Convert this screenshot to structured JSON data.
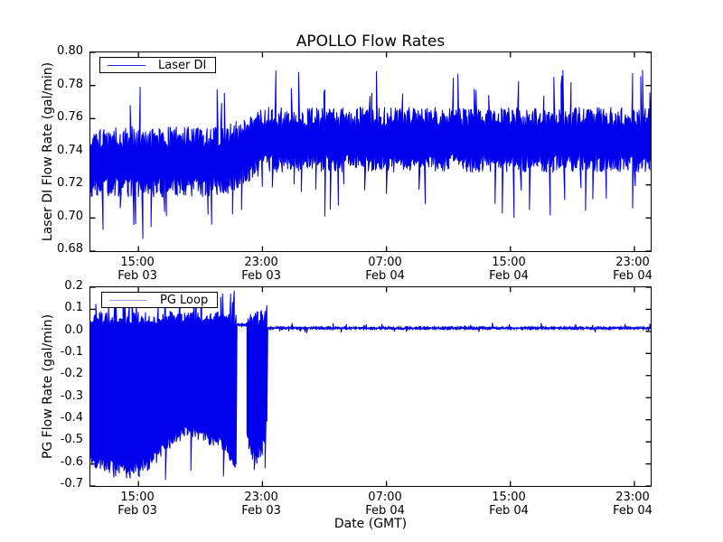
{
  "figure": {
    "background": "#ffffff",
    "spine_color": "#000000",
    "text_color": "#000000"
  },
  "chart_data": [
    {
      "type": "line",
      "title": "APOLLO Flow Rates",
      "ylabel": "Laser DI Flow Rate (gal/min)",
      "legend": "Laser DI",
      "legend_position": "upper left",
      "line_color": "#0000ee",
      "legend_line_color": "#2222dd",
      "grid": false,
      "ylim": [
        0.68,
        0.8
      ],
      "ytick_values": [
        0.8,
        0.78,
        0.76,
        0.74,
        0.72,
        0.7,
        0.68
      ],
      "ytick_labels": [
        "0.80",
        "0.78",
        "0.76",
        "0.74",
        "0.72",
        "0.70",
        "0.68"
      ],
      "xlim_hours": [
        11.9,
        48.05
      ],
      "xticks": [
        {
          "t": 15,
          "time": "15:00",
          "date": "Feb 03"
        },
        {
          "t": 23,
          "time": "23:00",
          "date": "Feb 03"
        },
        {
          "t": 31,
          "time": "07:00",
          "date": "Feb 04"
        },
        {
          "t": 39,
          "time": "15:00",
          "date": "Feb 04"
        },
        {
          "t": 47,
          "time": "23:00",
          "date": "Feb 04"
        }
      ],
      "series": [
        {
          "name": "Laser DI",
          "description": "Dense noisy flow signal; band ~0.713-0.756 gal/min until ~20:30 Feb 03, then shifts up to ~0.728-0.767 gal/min; downward dips to ~0.686-0.70, upward spikes to ~0.78-0.79",
          "segments": [
            {
              "type": "noise",
              "t0": 11.9,
              "t1": 48.05,
              "lo": [
                [
                  11.9,
                  0.7125
                ],
                [
                  20.5,
                  0.7125
                ],
                [
                  23.2,
                  0.7275
                ],
                [
                  48.05,
                  0.7275
                ]
              ],
              "hi": [
                [
                  11.9,
                  0.7555
                ],
                [
                  20.5,
                  0.7555
                ],
                [
                  23.2,
                  0.767
                ],
                [
                  48.05,
                  0.767
                ]
              ],
              "dip_min": [
                [
                  11.9,
                  0.687
                ],
                [
                  20.5,
                  0.687
                ],
                [
                  23.2,
                  0.7
                ],
                [
                  48.05,
                  0.7
                ]
              ],
              "spike_max": [
                [
                  11.9,
                  0.781
                ],
                [
                  20.5,
                  0.781
                ],
                [
                  23.2,
                  0.79
                ],
                [
                  48.05,
                  0.79
                ]
              ],
              "lo_jitter": 0.28,
              "hi_jitter": 0.3,
              "p_dip": 0.05,
              "p_spike": 0.055
            }
          ]
        }
      ]
    },
    {
      "type": "line",
      "ylabel": "PG Flow Rate (gal/min)",
      "xlabel": "Date (GMT)",
      "legend": "PG Loop",
      "legend_position": "upper left",
      "line_color": "#0000ee",
      "legend_line_color": "#98a2e8",
      "grid": false,
      "ylim": [
        -0.7,
        0.2
      ],
      "ytick_values": [
        0.2,
        0.1,
        0.0,
        -0.1,
        -0.2,
        -0.3,
        -0.4,
        -0.5,
        -0.6,
        -0.7
      ],
      "ytick_labels": [
        "0.2",
        "0.1",
        "0.0",
        "-0.1",
        "-0.2",
        "-0.3",
        "-0.4",
        "-0.5",
        "-0.6",
        "-0.7"
      ],
      "xlim_hours": [
        11.9,
        48.05
      ],
      "xticks": [
        {
          "t": 15,
          "time": "15:00",
          "date": "Feb 03"
        },
        {
          "t": 23,
          "time": "23:00",
          "date": "Feb 03"
        },
        {
          "t": 31,
          "time": "07:00",
          "date": "Feb 04"
        },
        {
          "t": 39,
          "time": "15:00",
          "date": "Feb 04"
        },
        {
          "t": 47,
          "time": "23:00",
          "date": "Feb 04"
        }
      ],
      "series": [
        {
          "name": "PG Loop",
          "description": "Large oscillation (+0.1 to about -0.67 gal/min) from start until ~21:20 Feb 03, brief quiet gap, second burst until ~23:20 Feb 03, then steady ~0.015 gal/min with small noise",
          "segments": [
            {
              "type": "noise",
              "t0": 11.9,
              "t1": 21.35,
              "lo": [
                [
                  11.9,
                  -0.615
                ],
                [
                  12.6,
                  -0.645
                ],
                [
                  13.4,
                  -0.655
                ],
                [
                  14.2,
                  -0.67
                ],
                [
                  15.2,
                  -0.655
                ],
                [
                  16.2,
                  -0.6
                ],
                [
                  17.2,
                  -0.52
                ],
                [
                  18.2,
                  -0.485
                ],
                [
                  19.2,
                  -0.51
                ],
                [
                  20.0,
                  -0.53
                ],
                [
                  20.7,
                  -0.56
                ],
                [
                  21.1,
                  -0.62
                ],
                [
                  21.35,
                  -0.655
                ]
              ],
              "hi": [
                [
                  11.9,
                  0.09
                ],
                [
                  21.35,
                  0.09
                ]
              ],
              "dip_min": [
                [
                  11.9,
                  -0.68
                ],
                [
                  21.35,
                  -0.68
                ]
              ],
              "spike_max": [
                [
                  11.9,
                  0.185
                ],
                [
                  21.35,
                  0.185
                ]
              ],
              "lo_jitter": 0.1,
              "hi_jitter": 0.08,
              "p_dip": 0.02,
              "p_spike": 0.13
            },
            {
              "type": "flat",
              "t0": 21.35,
              "t1": 21.95,
              "value": 0.03,
              "amp": 0.006,
              "p_blip": 0.04,
              "blip_amp": 0.015
            },
            {
              "type": "noise",
              "t0": 21.95,
              "t1": 23.3,
              "lo": [
                [
                  21.95,
                  -0.45
                ],
                [
                  22.15,
                  -0.57
                ],
                [
                  22.6,
                  -0.62
                ],
                [
                  23.0,
                  -0.56
                ],
                [
                  23.3,
                  -0.42
                ]
              ],
              "hi": [
                [
                  21.95,
                  0.095
                ],
                [
                  23.3,
                  0.095
                ]
              ],
              "dip_min": [
                [
                  21.95,
                  -0.66
                ],
                [
                  23.3,
                  -0.66
                ]
              ],
              "spike_max": [
                [
                  21.95,
                  0.17
                ],
                [
                  23.3,
                  0.17
                ]
              ],
              "lo_jitter": 0.1,
              "hi_jitter": 0.1,
              "p_dip": 0.02,
              "p_spike": 0.1
            },
            {
              "type": "flat",
              "t0": 23.3,
              "t1": 48.05,
              "value": 0.015,
              "amp": 0.007,
              "p_blip": 0.06,
              "blip_amp": 0.02
            }
          ]
        }
      ]
    }
  ]
}
